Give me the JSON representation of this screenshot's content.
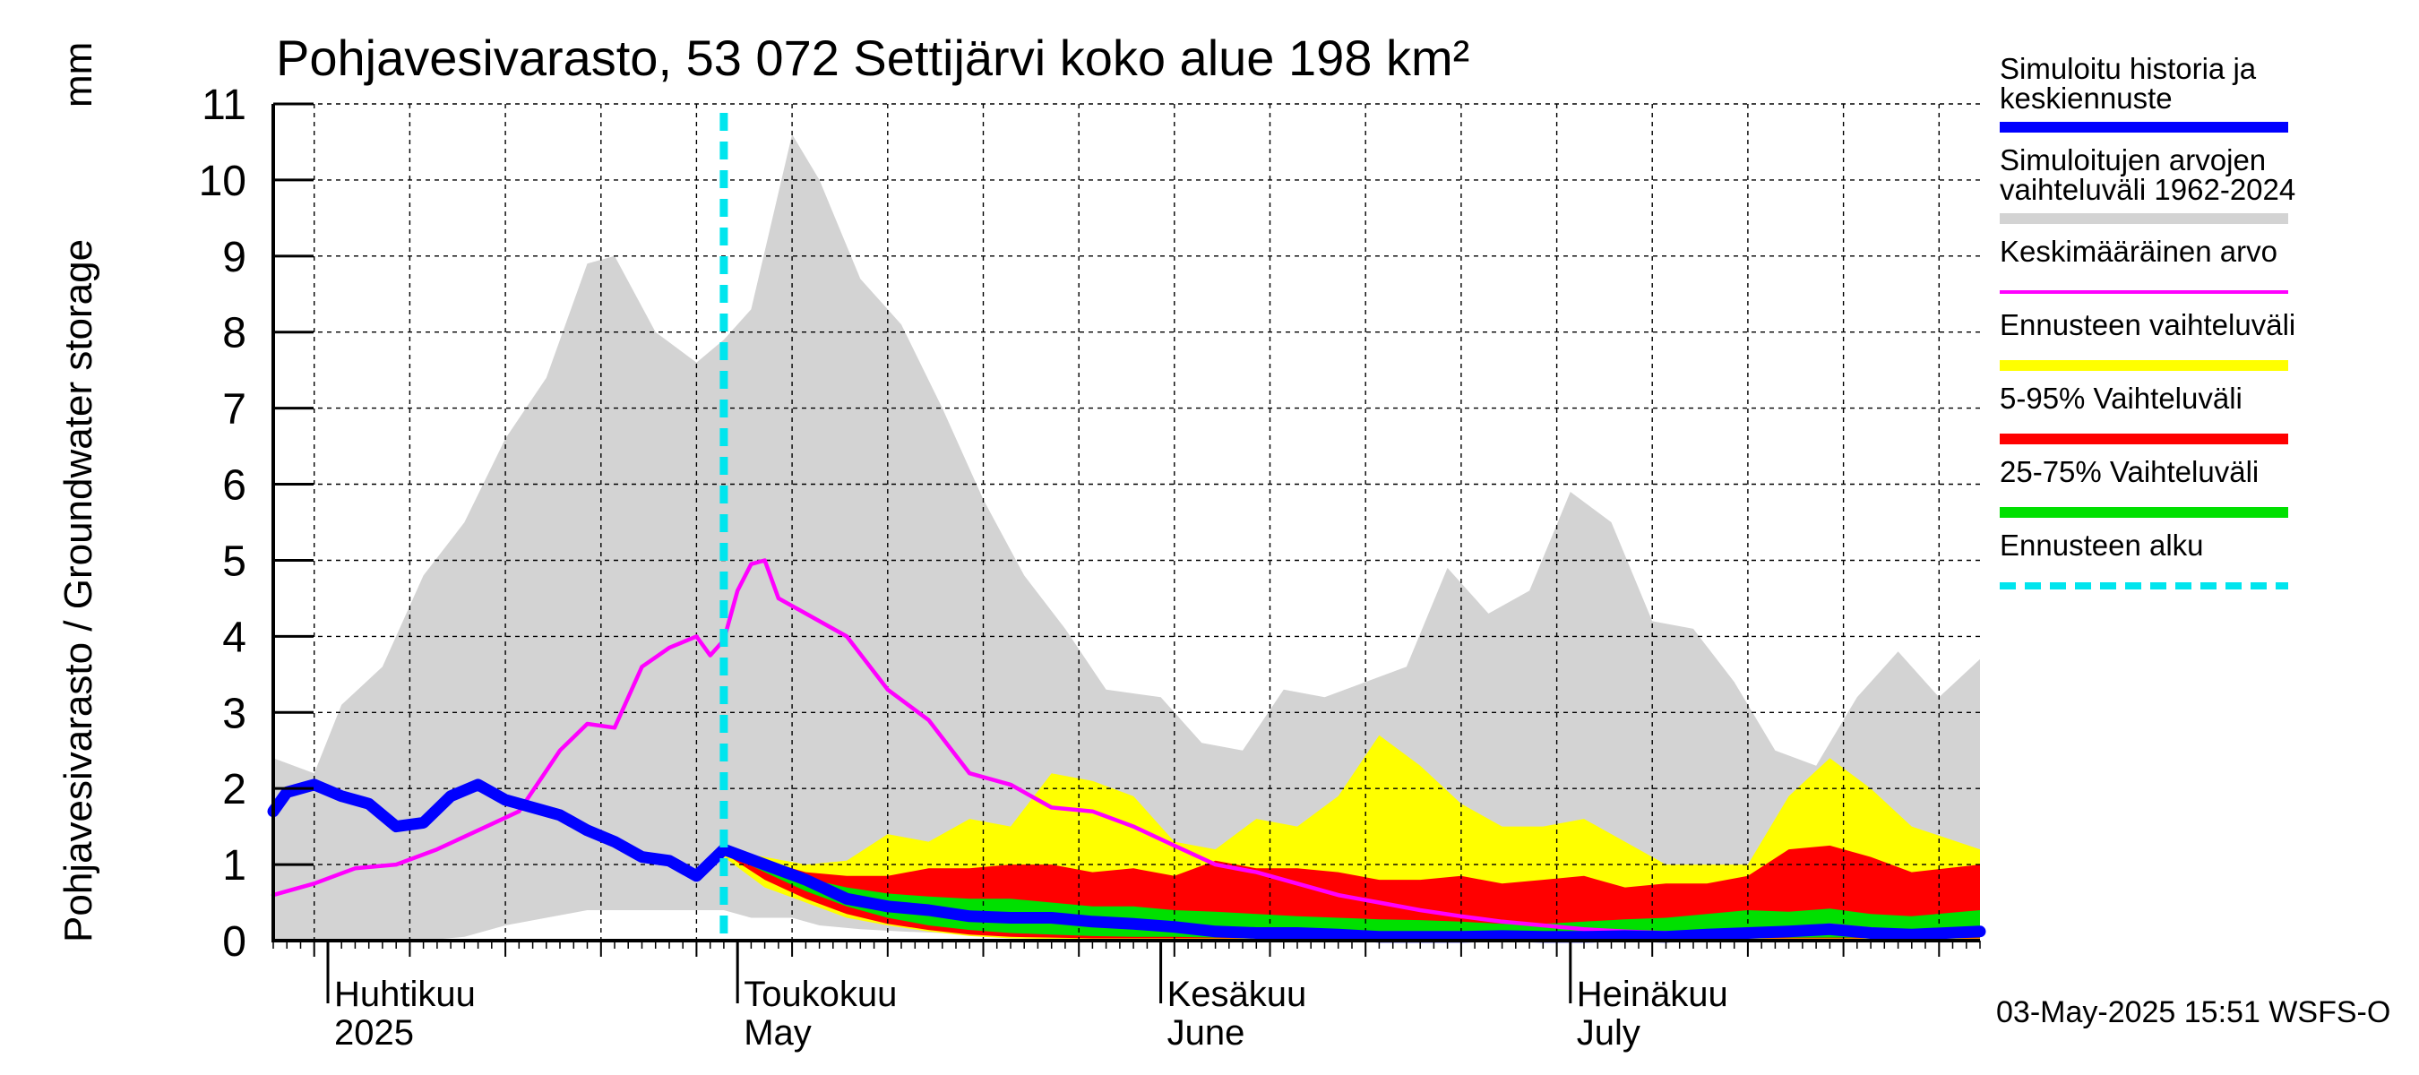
{
  "chart_data": {
    "type": "area",
    "title": "Pohjavesivarasto, 53 072 Settijärvi koko alue 198 km²",
    "ylabel": "Pohjavesivarasto / Groundwater storage",
    "yunit": "mm",
    "ylim": [
      0,
      11
    ],
    "yticks": [
      "0",
      "1",
      "2",
      "3",
      "4",
      "5",
      "6",
      "7",
      "8",
      "9",
      "10",
      "11"
    ],
    "xlim": [
      "2025-03-28",
      "2025-07-31"
    ],
    "month_labels": [
      {
        "date": "2025-04-01",
        "line1": "Huhtikuu",
        "line2": "2025"
      },
      {
        "date": "2025-05-01",
        "line1": "Toukokuu",
        "line2": "May"
      },
      {
        "date": "2025-06-01",
        "line1": "Kesäkuu",
        "line2": "June"
      },
      {
        "date": "2025-07-01",
        "line1": "Heinäkuu",
        "line2": "July"
      }
    ],
    "grid": true,
    "legend_position": "right",
    "forecast_start": "2025-04-30",
    "footer": "03-May-2025 15:51 WSFS-O",
    "colors": {
      "history_range": "#d3d3d3",
      "forecast_range": "#ffff00",
      "p5_95": "#ff0000",
      "p25_75": "#00e000",
      "mean": "#ff00ff",
      "simulated": "#0000ff",
      "forecast_start": "#00e5ee"
    },
    "legend": [
      {
        "label": "Simuloitu historia ja",
        "label2": "keskiennuste",
        "kind": "line",
        "color": "#0000ff",
        "width": 12
      },
      {
        "label": "Simuloitujen arvojen",
        "label2": "vaihteluväli 1962-2024",
        "kind": "line",
        "color": "#d3d3d3",
        "width": 12
      },
      {
        "label": "Keskimääräinen arvo",
        "label2": "",
        "kind": "line",
        "color": "#ff00ff",
        "width": 4
      },
      {
        "label": "Ennusteen vaihteluväli",
        "label2": "",
        "kind": "line",
        "color": "#ffff00",
        "width": 12
      },
      {
        "label": "5-95% Vaihteluväli",
        "label2": "",
        "kind": "line",
        "color": "#ff0000",
        "width": 12
      },
      {
        "label": "25-75% Vaihteluväli",
        "label2": "",
        "kind": "line",
        "color": "#00e000",
        "width": 12
      },
      {
        "label": "Ennusteen alku",
        "label2": "",
        "kind": "dash",
        "color": "#00e5ee",
        "width": 8
      }
    ],
    "series": [
      {
        "name": "Simulaatioiden vaihteluväli 1962-2024",
        "kind": "band",
        "x": [
          "2025-03-28",
          "2025-03-31",
          "2025-04-02",
          "2025-04-05",
          "2025-04-08",
          "2025-04-11",
          "2025-04-14",
          "2025-04-17",
          "2025-04-20",
          "2025-04-22",
          "2025-04-25",
          "2025-04-28",
          "2025-04-30",
          "2025-05-02",
          "2025-05-05",
          "2025-05-07",
          "2025-05-10",
          "2025-05-13",
          "2025-05-16",
          "2025-05-19",
          "2025-05-22",
          "2025-05-25",
          "2025-05-28",
          "2025-06-01",
          "2025-06-04",
          "2025-06-07",
          "2025-06-10",
          "2025-06-13",
          "2025-06-16",
          "2025-06-19",
          "2025-06-22",
          "2025-06-25",
          "2025-06-28",
          "2025-07-01",
          "2025-07-04",
          "2025-07-07",
          "2025-07-10",
          "2025-07-13",
          "2025-07-16",
          "2025-07-19",
          "2025-07-22",
          "2025-07-25",
          "2025-07-28",
          "2025-07-31"
        ],
        "upper": [
          2.4,
          2.2,
          3.1,
          3.6,
          4.8,
          5.5,
          6.6,
          7.4,
          8.9,
          9.0,
          8.0,
          7.6,
          7.9,
          8.3,
          10.6,
          10.0,
          8.7,
          8.1,
          7.0,
          5.8,
          4.8,
          4.1,
          3.3,
          3.2,
          2.6,
          2.5,
          3.3,
          3.2,
          3.4,
          3.6,
          4.9,
          4.3,
          4.6,
          5.9,
          5.5,
          4.2,
          4.1,
          3.4,
          2.5,
          2.3,
          3.2,
          3.8,
          3.2,
          3.7
        ],
        "lower": [
          0,
          0,
          0,
          0,
          0,
          0.05,
          0.2,
          0.3,
          0.4,
          0.4,
          0.4,
          0.4,
          0.4,
          0.3,
          0.3,
          0.2,
          0.15,
          0.12,
          0.1,
          0.08,
          0.06,
          0.05,
          0.04,
          0.03,
          0.02,
          0.02,
          0.02,
          0.02,
          0.02,
          0.02,
          0.02,
          0.02,
          0.02,
          0.02,
          0.02,
          0.02,
          0.02,
          0.02,
          0.02,
          0.02,
          0.02,
          0.02,
          0.02,
          0.02
        ]
      },
      {
        "name": "Ennusteen vaihteluväli",
        "kind": "band",
        "x": [
          "2025-04-30",
          "2025-05-03",
          "2025-05-06",
          "2025-05-09",
          "2025-05-12",
          "2025-05-15",
          "2025-05-18",
          "2025-05-21",
          "2025-05-24",
          "2025-05-27",
          "2025-05-30",
          "2025-06-02",
          "2025-06-05",
          "2025-06-08",
          "2025-06-11",
          "2025-06-14",
          "2025-06-17",
          "2025-06-20",
          "2025-06-23",
          "2025-06-26",
          "2025-06-29",
          "2025-07-02",
          "2025-07-05",
          "2025-07-08",
          "2025-07-11",
          "2025-07-14",
          "2025-07-17",
          "2025-07-20",
          "2025-07-23",
          "2025-07-26",
          "2025-07-31"
        ],
        "upper": [
          1.2,
          1.1,
          1.0,
          1.05,
          1.4,
          1.3,
          1.6,
          1.5,
          2.2,
          2.1,
          1.9,
          1.3,
          1.2,
          1.6,
          1.5,
          1.9,
          2.7,
          2.3,
          1.8,
          1.5,
          1.5,
          1.6,
          1.3,
          1.0,
          1.0,
          1.0,
          1.9,
          2.4,
          2.0,
          1.5,
          1.2
        ],
        "lower": [
          1.1,
          0.7,
          0.5,
          0.3,
          0.2,
          0.12,
          0.06,
          0.03,
          0.02,
          0.02,
          0.02,
          0.02,
          0.02,
          0.02,
          0.02,
          0.02,
          0.02,
          0.02,
          0.02,
          0.02,
          0.02,
          0.02,
          0.02,
          0.02,
          0.02,
          0.02,
          0.02,
          0.02,
          0.02,
          0.02,
          0.02
        ]
      },
      {
        "name": "5-95% Vaihteluväli",
        "kind": "band",
        "x": [
          "2025-04-30",
          "2025-05-03",
          "2025-05-06",
          "2025-05-09",
          "2025-05-12",
          "2025-05-15",
          "2025-05-18",
          "2025-05-21",
          "2025-05-24",
          "2025-05-27",
          "2025-05-30",
          "2025-06-02",
          "2025-06-05",
          "2025-06-08",
          "2025-06-11",
          "2025-06-14",
          "2025-06-17",
          "2025-06-20",
          "2025-06-23",
          "2025-06-26",
          "2025-06-29",
          "2025-07-02",
          "2025-07-05",
          "2025-07-08",
          "2025-07-11",
          "2025-07-14",
          "2025-07-17",
          "2025-07-20",
          "2025-07-23",
          "2025-07-26",
          "2025-07-31"
        ],
        "upper": [
          1.2,
          1.05,
          0.9,
          0.85,
          0.85,
          0.95,
          0.95,
          1.0,
          1.0,
          0.9,
          0.95,
          0.85,
          1.05,
          0.95,
          0.95,
          0.9,
          0.8,
          0.8,
          0.85,
          0.75,
          0.8,
          0.85,
          0.7,
          0.75,
          0.75,
          0.85,
          1.2,
          1.25,
          1.1,
          0.9,
          1.0
        ],
        "lower": [
          1.15,
          0.8,
          0.55,
          0.35,
          0.22,
          0.14,
          0.08,
          0.05,
          0.04,
          0.03,
          0.03,
          0.03,
          0.03,
          0.03,
          0.03,
          0.03,
          0.03,
          0.03,
          0.03,
          0.03,
          0.03,
          0.03,
          0.03,
          0.03,
          0.03,
          0.03,
          0.03,
          0.03,
          0.03,
          0.03,
          0.03
        ]
      },
      {
        "name": "25-75% Vaihteluväli",
        "kind": "band",
        "x": [
          "2025-04-30",
          "2025-05-03",
          "2025-05-06",
          "2025-05-09",
          "2025-05-12",
          "2025-05-15",
          "2025-05-18",
          "2025-05-21",
          "2025-05-24",
          "2025-05-27",
          "2025-05-30",
          "2025-06-02",
          "2025-06-05",
          "2025-06-08",
          "2025-06-11",
          "2025-06-14",
          "2025-06-17",
          "2025-06-20",
          "2025-06-23",
          "2025-06-26",
          "2025-06-29",
          "2025-07-02",
          "2025-07-05",
          "2025-07-08",
          "2025-07-11",
          "2025-07-14",
          "2025-07-17",
          "2025-07-20",
          "2025-07-23",
          "2025-07-26",
          "2025-07-31"
        ],
        "upper": [
          1.18,
          1.0,
          0.82,
          0.7,
          0.62,
          0.58,
          0.55,
          0.55,
          0.5,
          0.45,
          0.45,
          0.4,
          0.38,
          0.35,
          0.32,
          0.3,
          0.28,
          0.27,
          0.25,
          0.22,
          0.22,
          0.25,
          0.28,
          0.3,
          0.35,
          0.4,
          0.38,
          0.42,
          0.35,
          0.32,
          0.4
        ],
        "lower": [
          1.16,
          0.9,
          0.65,
          0.45,
          0.3,
          0.2,
          0.14,
          0.1,
          0.08,
          0.06,
          0.05,
          0.05,
          0.04,
          0.04,
          0.04,
          0.04,
          0.04,
          0.04,
          0.04,
          0.04,
          0.04,
          0.04,
          0.04,
          0.04,
          0.04,
          0.04,
          0.04,
          0.04,
          0.04,
          0.04,
          0.04
        ]
      },
      {
        "name": "Keskimääräinen arvo",
        "kind": "line",
        "x": [
          "2025-03-28",
          "2025-03-31",
          "2025-04-03",
          "2025-04-06",
          "2025-04-09",
          "2025-04-12",
          "2025-04-15",
          "2025-04-18",
          "2025-04-20",
          "2025-04-22",
          "2025-04-24",
          "2025-04-26",
          "2025-04-28",
          "2025-04-29",
          "2025-04-30",
          "2025-05-01",
          "2025-05-02",
          "2025-05-03",
          "2025-05-04",
          "2025-05-06",
          "2025-05-09",
          "2025-05-12",
          "2025-05-15",
          "2025-05-18",
          "2025-05-21",
          "2025-05-24",
          "2025-05-27",
          "2025-05-30",
          "2025-06-02",
          "2025-06-05",
          "2025-06-08",
          "2025-06-11",
          "2025-06-14",
          "2025-06-17",
          "2025-06-20",
          "2025-06-23",
          "2025-06-26",
          "2025-06-29",
          "2025-07-02",
          "2025-07-05",
          "2025-07-08",
          "2025-07-11",
          "2025-07-14",
          "2025-07-17",
          "2025-07-20",
          "2025-07-23",
          "2025-07-26",
          "2025-07-31"
        ],
        "y": [
          0.6,
          0.75,
          0.95,
          1.0,
          1.2,
          1.45,
          1.7,
          2.5,
          2.85,
          2.8,
          3.6,
          3.85,
          4.0,
          3.75,
          3.95,
          4.6,
          4.95,
          5.0,
          4.5,
          4.3,
          4.0,
          3.3,
          2.9,
          2.2,
          2.05,
          1.75,
          1.7,
          1.5,
          1.25,
          1.0,
          0.9,
          0.75,
          0.6,
          0.5,
          0.4,
          0.32,
          0.25,
          0.2,
          0.15,
          0.12,
          0.1,
          0.1,
          0.12,
          0.15,
          0.2,
          0.15,
          0.1,
          0.12
        ]
      },
      {
        "name": "Simuloitu historia ja keskiennuste",
        "kind": "line",
        "x": [
          "2025-03-28",
          "2025-03-29",
          "2025-03-31",
          "2025-04-02",
          "2025-04-04",
          "2025-04-06",
          "2025-04-08",
          "2025-04-10",
          "2025-04-12",
          "2025-04-14",
          "2025-04-16",
          "2025-04-18",
          "2025-04-20",
          "2025-04-22",
          "2025-04-24",
          "2025-04-26",
          "2025-04-28",
          "2025-04-30",
          "2025-05-03",
          "2025-05-06",
          "2025-05-09",
          "2025-05-12",
          "2025-05-15",
          "2025-05-18",
          "2025-05-21",
          "2025-05-24",
          "2025-05-27",
          "2025-05-30",
          "2025-06-02",
          "2025-06-05",
          "2025-06-08",
          "2025-06-11",
          "2025-06-14",
          "2025-06-17",
          "2025-06-20",
          "2025-06-23",
          "2025-06-26",
          "2025-06-29",
          "2025-07-02",
          "2025-07-05",
          "2025-07-08",
          "2025-07-11",
          "2025-07-14",
          "2025-07-17",
          "2025-07-20",
          "2025-07-23",
          "2025-07-26",
          "2025-07-31"
        ],
        "y": [
          1.7,
          1.95,
          2.05,
          1.9,
          1.8,
          1.5,
          1.55,
          1.9,
          2.05,
          1.85,
          1.75,
          1.65,
          1.45,
          1.3,
          1.1,
          1.05,
          0.85,
          1.2,
          1.0,
          0.8,
          0.55,
          0.45,
          0.4,
          0.32,
          0.3,
          0.3,
          0.25,
          0.22,
          0.18,
          0.12,
          0.1,
          0.1,
          0.08,
          0.05,
          0.05,
          0.05,
          0.06,
          0.05,
          0.05,
          0.06,
          0.05,
          0.08,
          0.1,
          0.12,
          0.15,
          0.1,
          0.08,
          0.12
        ]
      }
    ]
  }
}
